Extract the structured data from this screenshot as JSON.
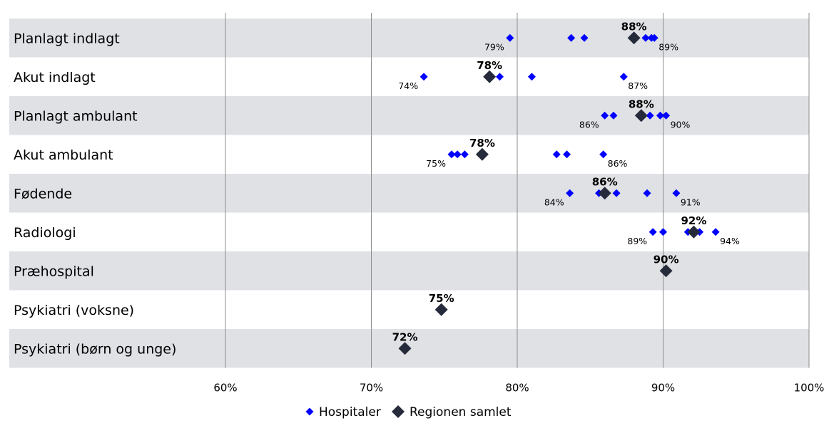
{
  "chart_data": {
    "type": "scatter",
    "orientation": "horizontal-categories",
    "title": "",
    "xlabel": "",
    "ylabel": "",
    "xlim": [
      45,
      100
    ],
    "xticks": [
      60,
      70,
      80,
      90,
      100
    ],
    "xtick_labels": [
      "60%",
      "70%",
      "80%",
      "90%",
      "100%"
    ],
    "grid": "vertical lines at ticks",
    "legend_position": "bottom-center",
    "colors": {
      "hospital": "#0000ff",
      "region": "#262b3b",
      "band": "#dfe1e5",
      "gridline": "#8c8c8c"
    },
    "series": [
      {
        "name": "Hospitaler",
        "marker": "small-diamond"
      },
      {
        "name": "Regionen samlet",
        "marker": "large-diamond"
      }
    ],
    "categories": [
      {
        "label": "Planlagt indlagt",
        "hospitals": [
          79.5,
          83.7,
          84.6,
          88.8,
          89.2,
          89.4
        ],
        "min_label": "79%",
        "max_label": "89%",
        "total": 88.0,
        "total_label": "88%"
      },
      {
        "label": "Akut indlagt",
        "hospitals": [
          73.6,
          78.8,
          81.0,
          87.3
        ],
        "min_label": "74%",
        "max_label": "87%",
        "total": 78.1,
        "total_label": "78%"
      },
      {
        "label": "Planlagt ambulant",
        "hospitals": [
          86.0,
          86.6,
          89.1,
          89.8,
          90.2
        ],
        "min_label": "86%",
        "max_label": "90%",
        "total": 88.5,
        "total_label": "88%"
      },
      {
        "label": "Akut ambulant",
        "hospitals": [
          75.5,
          75.9,
          76.4,
          82.7,
          83.4,
          85.9
        ],
        "min_label": "75%",
        "max_label": "86%",
        "total": 77.6,
        "total_label": "78%"
      },
      {
        "label": "Fødende",
        "hospitals": [
          83.6,
          85.6,
          86.8,
          88.9,
          90.9
        ],
        "min_label": "84%",
        "max_label": "91%",
        "total": 86.0,
        "total_label": "86%"
      },
      {
        "label": "Radiologi",
        "hospitals": [
          89.3,
          90.0,
          91.7,
          92.5,
          93.6
        ],
        "min_label": "89%",
        "max_label": "94%",
        "total": 92.1,
        "total_label": "92%"
      },
      {
        "label": "Præhospital",
        "hospitals": [],
        "min_label": "",
        "max_label": "",
        "total": 90.2,
        "total_label": "90%"
      },
      {
        "label": "Psykiatri (voksne)",
        "hospitals": [],
        "min_label": "",
        "max_label": "",
        "total": 74.8,
        "total_label": "75%"
      },
      {
        "label": "Psykiatri (børn og unge)",
        "hospitals": [],
        "min_label": "",
        "max_label": "",
        "total": 72.3,
        "total_label": "72%"
      }
    ]
  }
}
